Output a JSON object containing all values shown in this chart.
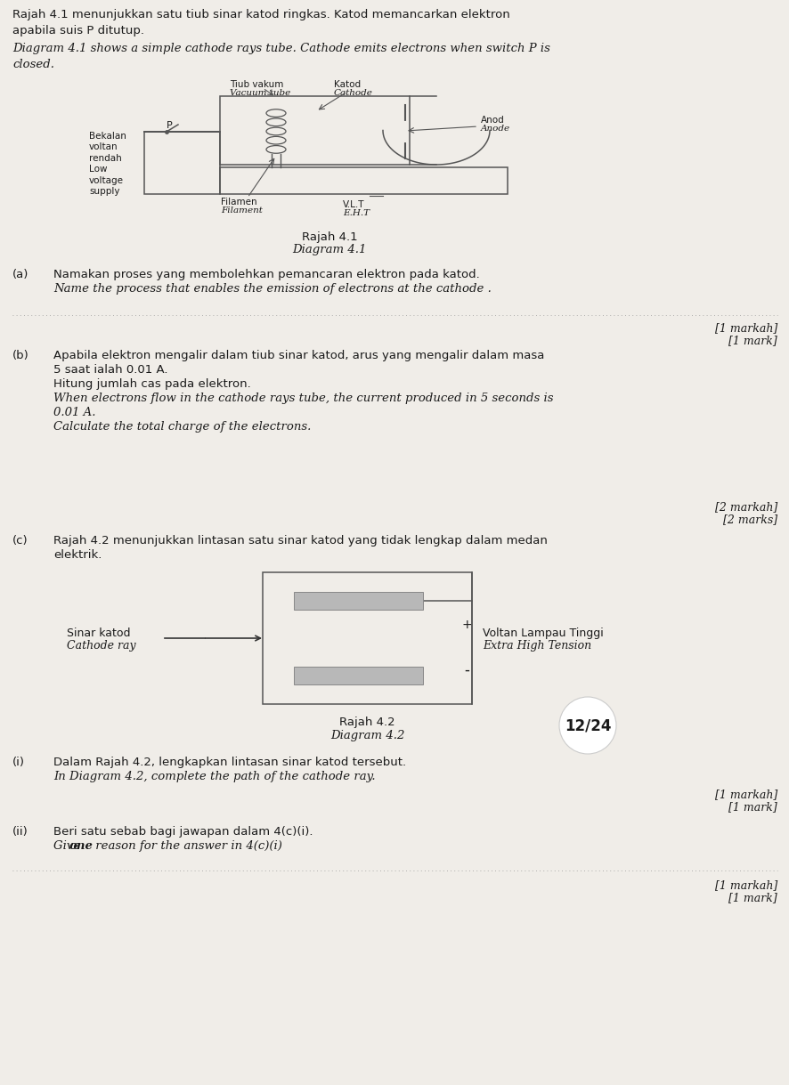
{
  "bg_color": "#f0ede8",
  "text_color": "#1a1a1a",
  "line_color": "#555555",
  "title_intro_malay": "Rajah 4.1 menunjukkan satu tiub sinar katod ringkas. Katod memancarkan elektron\napabila suis P ditutup.",
  "title_intro_eng": "Diagram 4.1 shows a simple cathode rays tube. Cathode emits electrons when switch P is\nclosed.",
  "diagram41_caption_malay": "Rajah 4.1",
  "diagram41_caption_eng": "Diagram 4.1",
  "part_a_label": "(a)",
  "part_a_malay": "Namakan proses yang membolehkan pemancaran elektron pada katod.",
  "part_a_eng": "Name the process that enables the emission of electrons at the cathode .",
  "mark1_malay": "[1 markah]",
  "mark1_eng": "[1 mark]",
  "part_b_label": "(b)",
  "part_b_malay_1": "Apabila elektron mengalir dalam tiub sinar katod, arus yang mengalir dalam masa",
  "part_b_malay_2": "5 saat ialah 0.01 A.",
  "part_b_malay_3": "Hitung jumlah cas pada elektron.",
  "part_b_eng_1": "When electrons flow in the cathode rays tube, the current produced in 5 seconds is",
  "part_b_eng_2": "0.01 A.",
  "part_b_eng_3": "Calculate the total charge of the electrons.",
  "mark2_malay": "[2 markah]",
  "mark2_eng": "[2 marks]",
  "part_c_label": "(c)",
  "part_c_malay_1": "Rajah 4.2 menunjukkan lintasan satu sinar katod yang tidak lengkap dalam medan",
  "part_c_malay_2": "elektrik.",
  "diagram42_label_left_malay": "Sinar katod",
  "diagram42_label_left_eng": "Cathode ray",
  "diagram42_label_right_malay": "Voltan Lampau Tinggi",
  "diagram42_label_right_eng": "Extra High Tension",
  "diagram42_plus": "+",
  "diagram42_minus": "-",
  "diagram42_caption_malay": "Rajah 4.2",
  "diagram42_caption_eng": "Diagram 4.2",
  "page_num": "12/24",
  "part_ci_label": "(i)",
  "part_ci_malay": "Dalam Rajah 4.2, lengkapkan lintasan sinar katod tersebut.",
  "part_ci_eng": "In Diagram 4.2, complete the path of the cathode ray.",
  "mark1b_malay": "[1 markah]",
  "mark1b_eng": "[1 mark]",
  "part_cii_label": "(ii)",
  "part_cii_malay": "Beri satu sebab bagi jawapan dalam 4(c)(i).",
  "part_cii_eng_pre": "Give ",
  "part_cii_eng_bold": "one",
  "part_cii_eng_post": " reason for the answer in 4(c)(i)",
  "mark1c_malay": "[1 markah]",
  "mark1c_eng": "[1 mark]",
  "diag1_bekalan": "Bekalan\nvoltan\nrendah\nLow\nvoltage\nsupply",
  "diag1_P": "P",
  "diag1_tiubvakum_malay": "Tiub vakum",
  "diag1_tiubvakum_eng": "Vacuum tube",
  "diag1_katod_malay": "Katod",
  "diag1_katod_eng": "Cathode",
  "diag1_anod_malay": "Anod",
  "diag1_anod_eng": "Anode",
  "diag1_filamen_malay": "Filamen",
  "diag1_filamen_eng": "Filament",
  "diag1_vlt": "V.L.T",
  "diag1_eht": "E.H.T"
}
